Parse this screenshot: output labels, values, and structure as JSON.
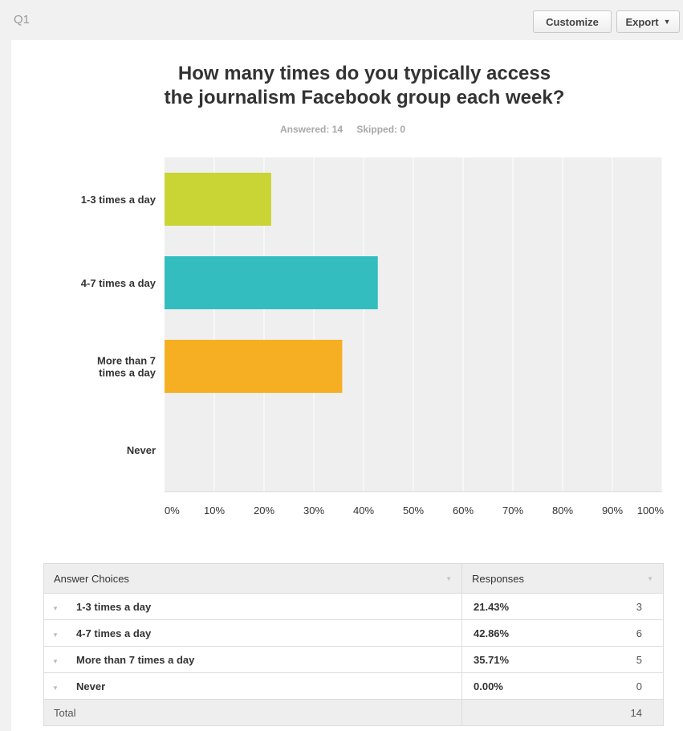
{
  "header": {
    "question_label": "Q1",
    "customize_label": "Customize",
    "export_label": "Export",
    "export_caret": "▼"
  },
  "summary": {
    "answered": "Answered: 14",
    "skipped": "Skipped: 0"
  },
  "chart_data": {
    "type": "bar",
    "orientation": "horizontal",
    "title": "How many times do you typically access the journalism Facebook group each week?",
    "title_lines": [
      "How many times do you typically access",
      "the journalism Facebook group each week?"
    ],
    "categories": [
      "1-3 times a day",
      "4-7 times a day",
      "More than 7 times a day",
      "Never"
    ],
    "category_label_lines": [
      [
        "1-3 times a day"
      ],
      [
        "4-7 times a day"
      ],
      [
        "More than 7",
        "times a day"
      ],
      [
        "Never"
      ]
    ],
    "values": [
      21.43,
      42.86,
      35.71,
      0
    ],
    "colors": [
      "#c8d534",
      "#33bdbf",
      "#f6ae22",
      "#cccccc"
    ],
    "xlim": [
      0,
      100
    ],
    "x_ticks": [
      0,
      10,
      20,
      30,
      40,
      50,
      60,
      70,
      80,
      90,
      100
    ],
    "x_tick_labels": [
      "0%",
      "10%",
      "20%",
      "30%",
      "40%",
      "50%",
      "60%",
      "70%",
      "80%",
      "90%",
      "100%"
    ],
    "grid": true,
    "background": "#efefef"
  },
  "table": {
    "headers": {
      "choices": "Answer Choices",
      "responses": "Responses"
    },
    "sort_arrow": "▼",
    "row_arrow": "▼",
    "rows": [
      {
        "choice": "1-3 times a day",
        "percent": "21.43%",
        "count": "3"
      },
      {
        "choice": "4-7 times a day",
        "percent": "42.86%",
        "count": "6"
      },
      {
        "choice": "More than 7 times a day",
        "percent": "35.71%",
        "count": "5"
      },
      {
        "choice": "Never",
        "percent": "0.00%",
        "count": "0"
      }
    ],
    "total_label": "Total",
    "total_count": "14"
  }
}
